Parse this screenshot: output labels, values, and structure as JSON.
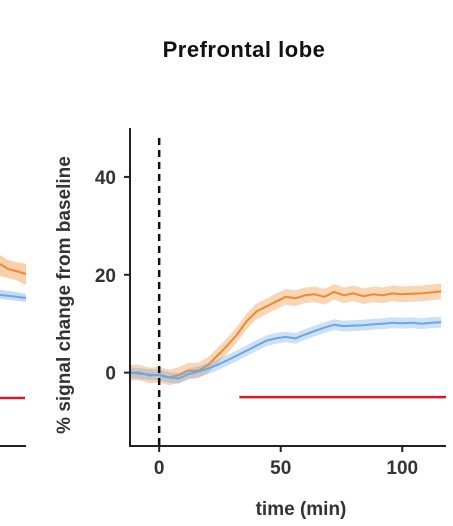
{
  "chart_data": {
    "type": "line",
    "title": "Prefrontal lobe",
    "xlabel": "time (min)",
    "ylabel": "% signal change from baseline",
    "xlim": [
      -12,
      118
    ],
    "ylim": [
      -15,
      50
    ],
    "xticks": [
      0,
      50,
      100
    ],
    "yticks": [
      0,
      20,
      40
    ],
    "onset_line_x": 0,
    "bar_y": -5,
    "bar_x_range": [
      33,
      118
    ],
    "colors": {
      "orange": "#ef8a2c",
      "blue": "#6ca6e6",
      "red_bar": "#d7182a",
      "axis": "#222222"
    },
    "series": [
      {
        "color": "#ef8a2c",
        "x": [
          -12,
          -8,
          -4,
          0,
          4,
          8,
          12,
          16,
          20,
          24,
          28,
          32,
          36,
          40,
          44,
          48,
          52,
          56,
          60,
          64,
          68,
          72,
          76,
          80,
          84,
          88,
          92,
          96,
          100,
          104,
          108,
          112,
          116
        ],
        "y": [
          0,
          0,
          -0.6,
          -0.4,
          -1.0,
          -0.5,
          0.4,
          0.4,
          1.5,
          3.5,
          5.5,
          7.8,
          10.5,
          12.5,
          13.5,
          14.5,
          15.5,
          15.2,
          15.8,
          16.0,
          15.5,
          16.5,
          15.8,
          16.2,
          15.6,
          16.0,
          15.8,
          16.2,
          16.0,
          16.1,
          16.2,
          16.4,
          16.6
        ],
        "band_halfwidth": 1.6
      },
      {
        "color": "#6ca6e6",
        "x": [
          -12,
          -8,
          -4,
          0,
          4,
          8,
          12,
          16,
          20,
          24,
          28,
          32,
          36,
          40,
          44,
          48,
          52,
          56,
          60,
          64,
          68,
          72,
          76,
          80,
          84,
          88,
          92,
          96,
          100,
          104,
          108,
          112,
          116
        ],
        "y": [
          0,
          -0.2,
          -0.4,
          -0.5,
          -1.0,
          -1.2,
          -0.3,
          0.2,
          0.8,
          1.6,
          2.5,
          3.5,
          4.5,
          5.5,
          6.5,
          7.0,
          7.3,
          7.0,
          7.8,
          8.5,
          9.2,
          9.8,
          9.5,
          9.6,
          9.7,
          9.9,
          10.0,
          10.2,
          10.1,
          10.2,
          10.0,
          10.2,
          10.3
        ],
        "band_halfwidth": 1.1
      }
    ]
  },
  "left_panel_fragment": {
    "colors": {
      "orange": "#ef8a2c",
      "blue": "#6ca6e6",
      "red_bar": "#d7182a"
    }
  }
}
